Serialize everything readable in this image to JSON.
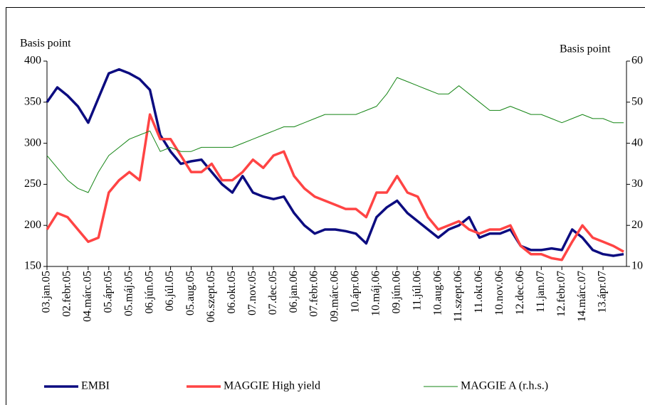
{
  "chart_data": {
    "type": "line",
    "y_label": "Basis point",
    "y2_label": "Basis point",
    "categories": [
      "03.jan.05",
      null,
      "02.febr.05",
      null,
      "04.márc.05",
      null,
      "05.ápr.05",
      null,
      "05.máj.05",
      null,
      "06.jún.05",
      null,
      "06.júl.05",
      null,
      "05.aug.05",
      null,
      "06.szept.05",
      null,
      "06.okt.05",
      null,
      "07.nov.05",
      null,
      "07.dec.05",
      null,
      "06.jan.06",
      null,
      "07.febr.06",
      null,
      "09.márc.06",
      null,
      "10.ápr.06",
      null,
      "10.máj.06",
      null,
      "09.jún.06",
      null,
      "11.júl.06",
      null,
      "10.aug.06",
      null,
      "11.szept.06",
      null,
      "11.okt.06",
      null,
      "10.nov.06",
      null,
      "12.dec.06",
      null,
      "11.jan.07",
      null,
      "12.febr.07",
      null,
      "14.márc.07",
      null,
      "13.ápr.07",
      null,
      null
    ],
    "series": [
      {
        "name": "EMBI",
        "color": "#0c0c80",
        "width": 3.5,
        "values": [
          350,
          368,
          358,
          345,
          325,
          355,
          385,
          390,
          385,
          378,
          365,
          310,
          290,
          275,
          278,
          280,
          265,
          250,
          240,
          260,
          240,
          235,
          232,
          235,
          215,
          200,
          190,
          195,
          195,
          193,
          190,
          178,
          210,
          222,
          230,
          215,
          205,
          195,
          185,
          195,
          200,
          210,
          185,
          190,
          190,
          195,
          175,
          170,
          170,
          172,
          170,
          195,
          185,
          170,
          165,
          163,
          165
        ]
      },
      {
        "name": "MAGGIE High yield",
        "color": "#ff4444",
        "width": 3.5,
        "values": [
          195,
          215,
          210,
          195,
          180,
          185,
          240,
          255,
          265,
          255,
          335,
          305,
          305,
          285,
          265,
          265,
          275,
          255,
          255,
          265,
          280,
          270,
          285,
          290,
          260,
          245,
          235,
          230,
          225,
          220,
          220,
          210,
          240,
          240,
          260,
          240,
          235,
          210,
          195,
          200,
          205,
          195,
          190,
          195,
          195,
          200,
          175,
          165,
          165,
          160,
          158,
          180,
          200,
          185,
          180,
          175,
          168
        ]
      },
      {
        "name": "MAGGIE A (r.h.s.)",
        "color": "#158515",
        "width": 1,
        "axis": "y2",
        "values": [
          37,
          34,
          31,
          29,
          28,
          33,
          37,
          39,
          41,
          42,
          43,
          38,
          39,
          38,
          38,
          39,
          39,
          39,
          39,
          40,
          41,
          42,
          43,
          44,
          44,
          45,
          46,
          47,
          47,
          47,
          47,
          48,
          49,
          52,
          56,
          55,
          54,
          53,
          52,
          52,
          54,
          52,
          50,
          48,
          48,
          49,
          48,
          47,
          47,
          46,
          45,
          46,
          47,
          46,
          46,
          45,
          45
        ]
      }
    ],
    "ylim": [
      150,
      400
    ],
    "yticks": [
      150,
      200,
      250,
      300,
      350,
      400
    ],
    "y2lim": [
      10,
      60
    ],
    "y2ticks": [
      10,
      20,
      30,
      40,
      50,
      60
    ],
    "legend": "bottom",
    "grid": false
  }
}
